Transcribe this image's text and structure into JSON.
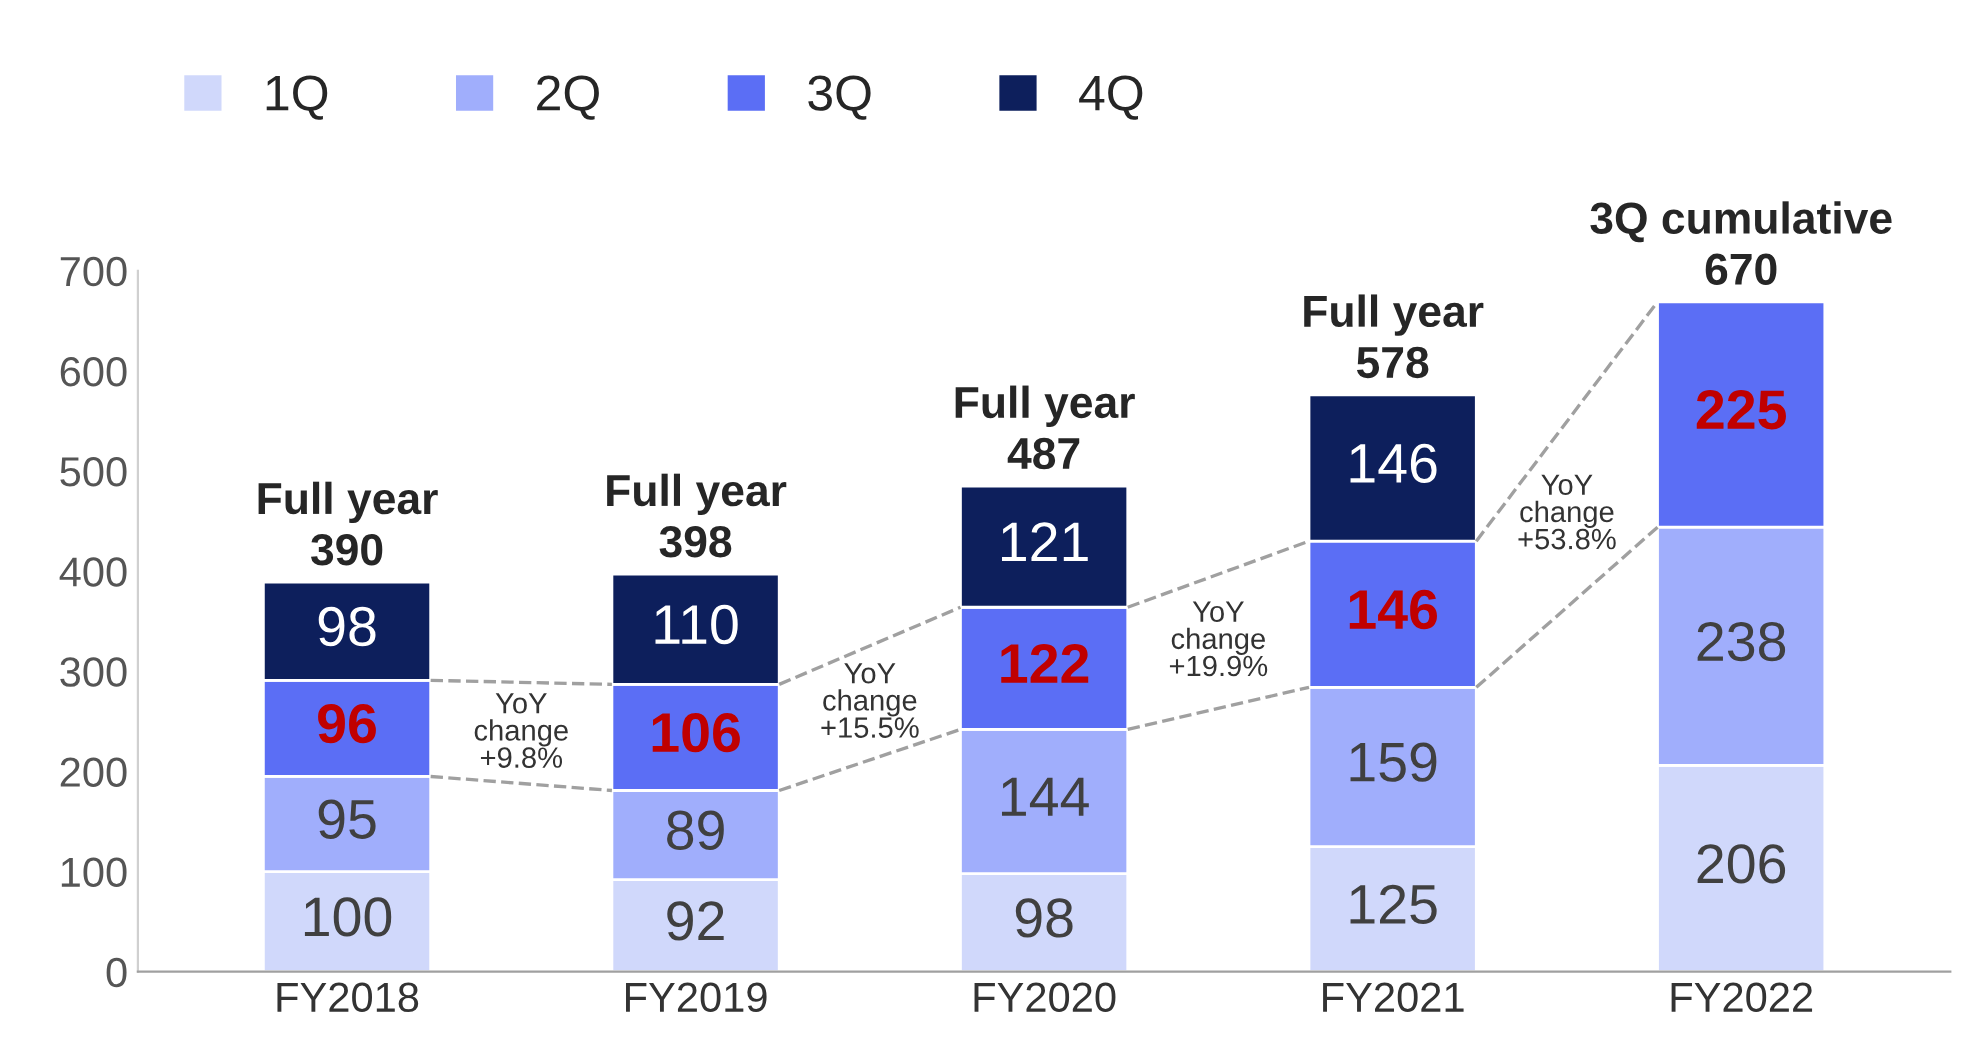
{
  "chart_data": {
    "type": "bar",
    "stacked": true,
    "categories": [
      "FY2018",
      "FY2019",
      "FY2020",
      "FY2021",
      "FY2022"
    ],
    "series": [
      {
        "name": "1Q",
        "color": "#d0d8fb",
        "values": [
          100,
          92,
          98,
          125,
          206
        ]
      },
      {
        "name": "2Q",
        "color": "#a0aefc",
        "values": [
          95,
          89,
          144,
          159,
          238
        ]
      },
      {
        "name": "3Q",
        "color": "#5b6ef5",
        "values": [
          96,
          106,
          122,
          146,
          225
        ]
      },
      {
        "name": "4Q",
        "color": "#0d1f5c",
        "values": [
          98,
          110,
          121,
          146,
          null
        ]
      }
    ],
    "ylim": [
      0,
      700
    ],
    "yticks": [
      0,
      100,
      200,
      300,
      400,
      500,
      600,
      700
    ],
    "data_labels": true,
    "totals": [
      "Full year\n390",
      "Full year\n398",
      "Full year\n487",
      "Full year\n578",
      "3Q cumulative\n670"
    ],
    "annotations": [
      "YoY\nchange\n+9.8%",
      "YoY\nchange\n+15.5%",
      "YoY\nchange\n+19.9%",
      "YoY\nchange\n+53.8%"
    ],
    "legend": "top",
    "grid": false
  }
}
